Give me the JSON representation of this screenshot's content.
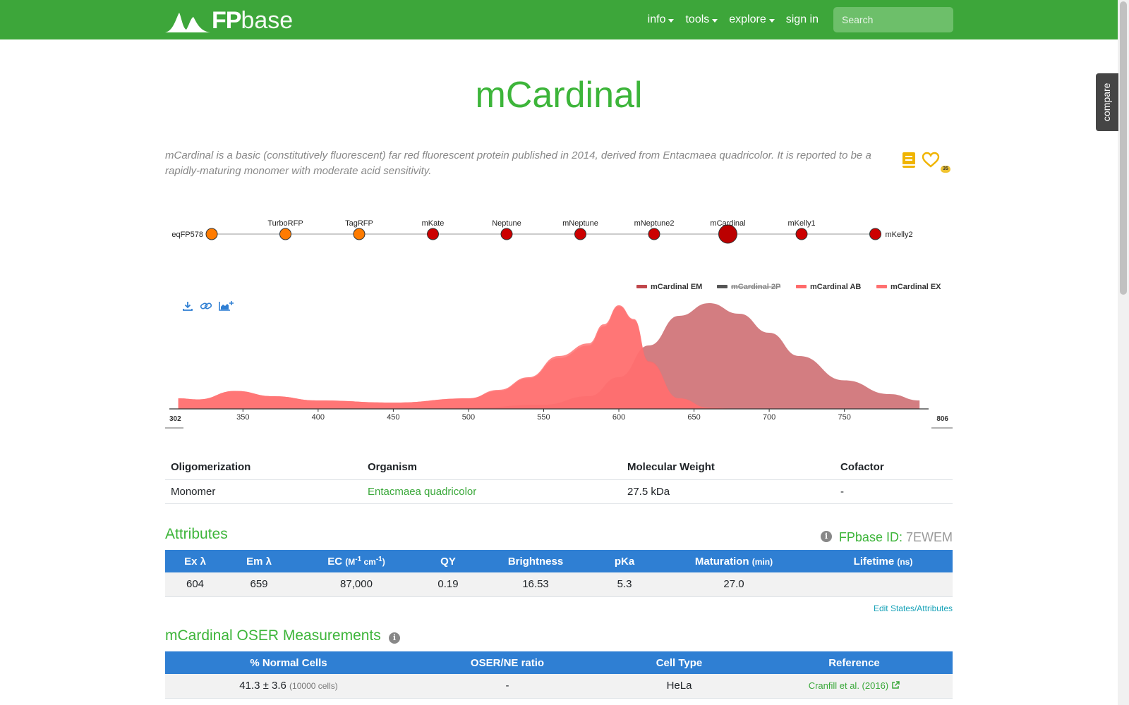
{
  "navbar": {
    "logo_fp": "FP",
    "logo_base": "base",
    "items": [
      {
        "label": "info",
        "dropdown": true
      },
      {
        "label": "tools",
        "dropdown": true
      },
      {
        "label": "explore",
        "dropdown": true
      },
      {
        "label": "sign in",
        "dropdown": false
      }
    ],
    "search_placeholder": "Search",
    "bg_color": "#3da63a"
  },
  "compare_tab": "compare",
  "protein": {
    "name": "mCardinal",
    "description": "mCardinal is a basic (constitutively fluorescent) far red fluorescent protein published in 2014, derived from Entacmaea quadricolor. It is reported to be a rapidly-maturing monomer with moderate acid sensitivity.",
    "favorites_count": "35",
    "icons": [
      "book-icon",
      "heart-icon"
    ]
  },
  "lineage": {
    "nodes": [
      {
        "label": "eqFP578",
        "color": "#ff7b00",
        "current": false
      },
      {
        "label": "TurboRFP",
        "color": "#ff7b00",
        "current": false
      },
      {
        "label": "TagRFP",
        "color": "#ff7b00",
        "current": false
      },
      {
        "label": "mKate",
        "color": "#cc0000",
        "current": false
      },
      {
        "label": "Neptune",
        "color": "#cc0000",
        "current": false
      },
      {
        "label": "mNeptune",
        "color": "#cc0000",
        "current": false
      },
      {
        "label": "mNeptune2",
        "color": "#cc0000",
        "current": false
      },
      {
        "label": "mCardinal",
        "color": "#bb0000",
        "current": true
      },
      {
        "label": "mKelly1",
        "color": "#cc0000",
        "current": false
      },
      {
        "label": "mKelly2",
        "color": "#cc0000",
        "current": false
      }
    ]
  },
  "chart_data": {
    "type": "area",
    "xlim": [
      302,
      806
    ],
    "x_ticks": [
      350,
      400,
      450,
      500,
      550,
      600,
      650,
      700,
      750
    ],
    "x_min_label": "302",
    "x_max_label": "806",
    "legend_position": "top-right",
    "series": [
      {
        "name": "mCardinal EM",
        "color": "#c0464b",
        "visible": true,
        "x": [
          450,
          500,
          550,
          580,
          600,
          620,
          640,
          660,
          680,
          700,
          720,
          750,
          780,
          800
        ],
        "y": [
          0.0,
          0.01,
          0.04,
          0.12,
          0.3,
          0.6,
          0.88,
          1.0,
          0.9,
          0.72,
          0.5,
          0.27,
          0.14,
          0.08
        ]
      },
      {
        "name": "mCardinal 2P",
        "color": "#555555",
        "visible": false,
        "x": [],
        "y": []
      },
      {
        "name": "mCardinal AB",
        "color": "#ff6a6a",
        "visible": true,
        "x": [
          307,
          320,
          345,
          370,
          400,
          450,
          500,
          520,
          540,
          560,
          580,
          590,
          600,
          610,
          620,
          640,
          660,
          680
        ],
        "y": [
          0.1,
          0.09,
          0.17,
          0.12,
          0.08,
          0.06,
          0.1,
          0.18,
          0.3,
          0.5,
          0.62,
          0.8,
          0.98,
          0.85,
          0.45,
          0.1,
          0.01,
          0.0
        ]
      },
      {
        "name": "mCardinal EX",
        "color": "#ff7070",
        "visible": true,
        "x": [
          307,
          320,
          345,
          370,
          400,
          450,
          500,
          520,
          540,
          560,
          580,
          590,
          600,
          610,
          620,
          640,
          660,
          680
        ],
        "y": [
          0.1,
          0.09,
          0.17,
          0.12,
          0.08,
          0.06,
          0.1,
          0.17,
          0.29,
          0.48,
          0.6,
          0.78,
          0.97,
          0.84,
          0.44,
          0.1,
          0.01,
          0.0
        ]
      }
    ]
  },
  "chart_tools": [
    "download-icon",
    "link-icon",
    "add-spectra-icon"
  ],
  "basic_table": {
    "headers": [
      "Oligomerization",
      "Organism",
      "Molecular Weight",
      "Cofactor"
    ],
    "row": [
      "Monomer",
      "Entacmaea quadricolor",
      "27.5 kDa",
      "-"
    ]
  },
  "attributes": {
    "heading": "Attributes",
    "fpbase_id_label": "FPbase ID:",
    "fpbase_id": "7EWEM",
    "headers": [
      "Ex λ",
      "Em λ",
      "EC",
      "QY",
      "Brightness",
      "pKa",
      "Maturation",
      "Lifetime"
    ],
    "header_units": [
      "",
      "",
      "(M-1 cm-1)",
      "",
      "",
      "",
      "(min)",
      "(ns)"
    ],
    "row": [
      "604",
      "659",
      "87,000",
      "0.19",
      "16.53",
      "5.3",
      "27.0",
      ""
    ],
    "edit_link": "Edit States/Attributes"
  },
  "oser": {
    "heading": "mCardinal OSER Measurements",
    "headers": [
      "% Normal Cells",
      "OSER/NE ratio",
      "Cell Type",
      "Reference"
    ],
    "row": {
      "normal_cells": "41.3 ± 3.6",
      "cells_count": "(10000 cells)",
      "ratio": "-",
      "cell_type": "HeLa",
      "reference": "Cranfill et al. (2016)"
    }
  }
}
